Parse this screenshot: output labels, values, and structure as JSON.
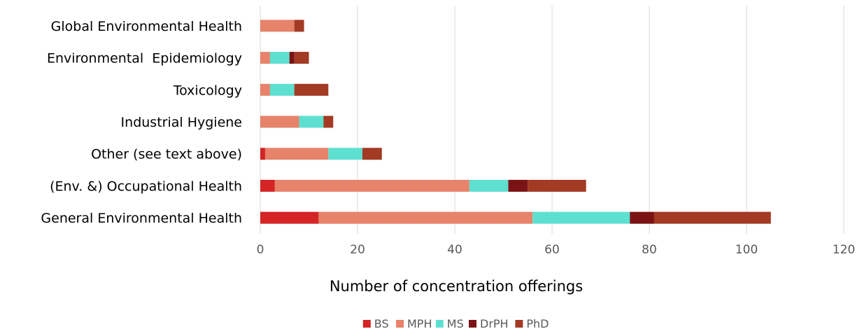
{
  "chart_data": {
    "type": "bar",
    "orientation": "horizontal",
    "stacked": true,
    "categories": [
      "Global Environmental Health",
      "Environmental  Epidemiology",
      "Toxicology",
      "Industrial Hygiene",
      "Other (see text above)",
      "(Env. &) Occupational Health",
      "General Environmental Health"
    ],
    "series": [
      {
        "name": "BS",
        "color": "#d42424",
        "values": [
          0,
          0,
          0,
          0,
          1,
          3,
          12
        ]
      },
      {
        "name": "MPH",
        "color": "#e7836a",
        "values": [
          7,
          2,
          2,
          8,
          13,
          40,
          44
        ]
      },
      {
        "name": "MS",
        "color": "#5ee0d0",
        "values": [
          0,
          4,
          5,
          5,
          7,
          8,
          20
        ]
      },
      {
        "name": "DrPH",
        "color": "#7b1314",
        "values": [
          0,
          1,
          0,
          0,
          0,
          4,
          5
        ]
      },
      {
        "name": "PhD",
        "color": "#a23a24",
        "values": [
          2,
          3,
          7,
          2,
          4,
          12,
          24
        ]
      }
    ],
    "xlabel": "Number of concentration offerings",
    "ylabel": "",
    "xlim": [
      0,
      120
    ],
    "ticks": [
      "0",
      "20",
      "40",
      "60",
      "80",
      "100",
      "120"
    ],
    "grid": "vertical",
    "legend": "bottom"
  }
}
